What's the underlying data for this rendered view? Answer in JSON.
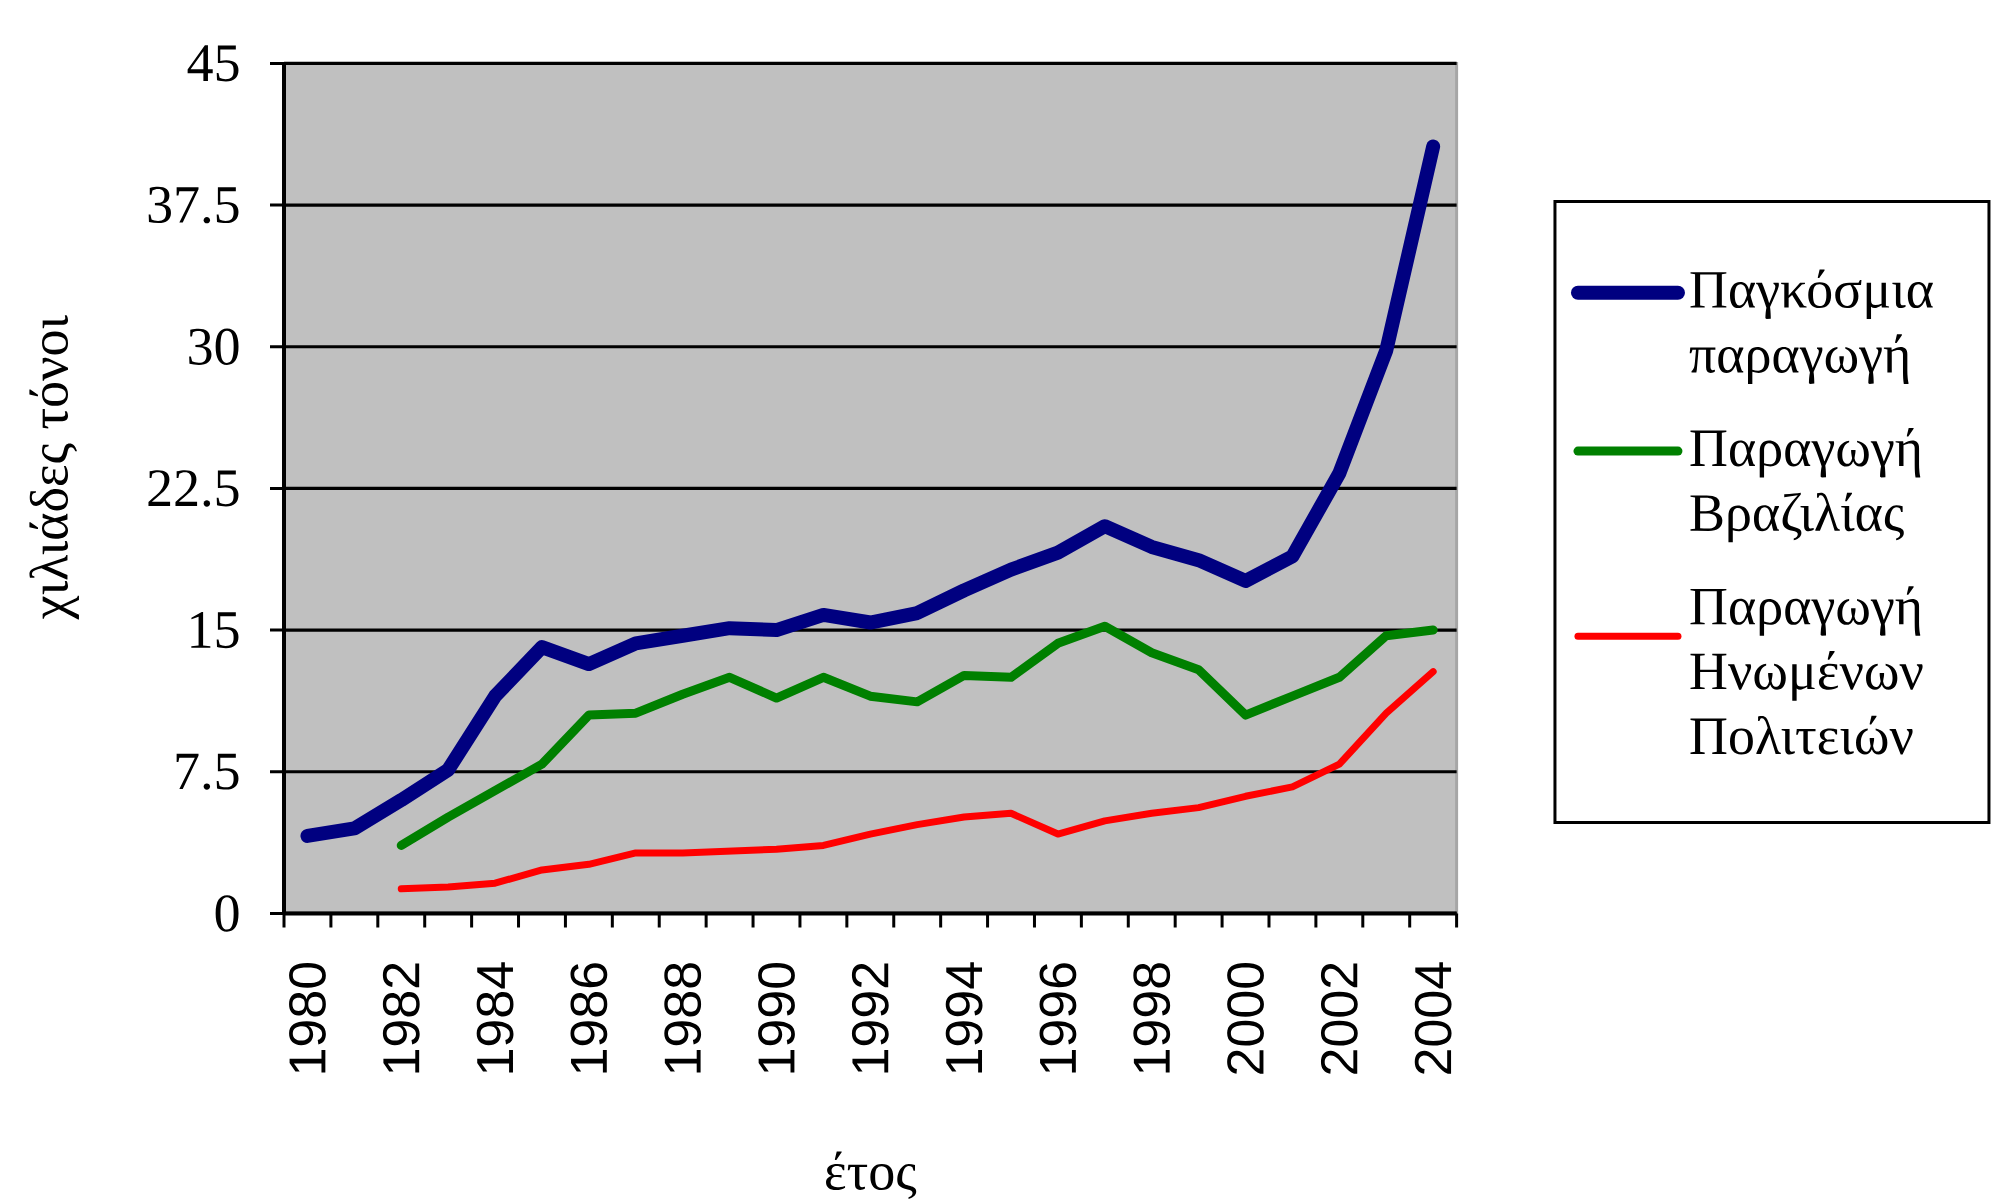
{
  "chart_data": {
    "type": "line",
    "xlabel": "έτος",
    "ylabel": "χιλιάδες τόνοι",
    "categories": [
      "1980",
      null,
      "1982",
      null,
      "1984",
      null,
      "1986",
      null,
      "1988",
      null,
      "1990",
      null,
      "1992",
      null,
      "1994",
      null,
      "1996",
      null,
      "1998",
      null,
      "2000",
      null,
      "2002",
      null,
      "2004"
    ],
    "series": [
      {
        "name": "Παγκόσμια παραγωγή",
        "color": "#000080",
        "values": [
          4.1,
          4.5,
          6.0,
          7.6,
          11.5,
          14.1,
          13.2,
          14.3,
          14.7,
          15.1,
          15.0,
          15.8,
          15.4,
          15.9,
          17.1,
          18.2,
          19.1,
          20.5,
          19.4,
          18.7,
          17.6,
          18.9,
          23.3,
          29.8,
          40.6
        ]
      },
      {
        "name": "Παραγωγή Βραζιλίας",
        "color": "#008000",
        "values": [
          null,
          null,
          3.6,
          5.1,
          6.5,
          7.9,
          10.5,
          10.6,
          11.6,
          12.5,
          11.4,
          12.5,
          11.5,
          11.2,
          12.6,
          12.5,
          14.3,
          15.2,
          13.8,
          12.9,
          10.5,
          11.5,
          12.5,
          14.7,
          15.0
        ]
      },
      {
        "name": "Παραγωγή Ηνωμένων Πολιτειών",
        "color": "#ff0000",
        "values": [
          null,
          null,
          1.3,
          1.4,
          1.6,
          2.3,
          2.6,
          3.2,
          3.2,
          3.3,
          3.4,
          3.6,
          4.2,
          4.7,
          5.1,
          5.3,
          4.2,
          4.9,
          5.3,
          5.6,
          6.2,
          6.7,
          7.9,
          10.6,
          12.8
        ]
      }
    ],
    "ylim": [
      0,
      45
    ],
    "yticks": [
      0,
      7.5,
      15,
      22.5,
      30,
      37.5,
      45
    ],
    "grid": "y",
    "legend": "right"
  }
}
